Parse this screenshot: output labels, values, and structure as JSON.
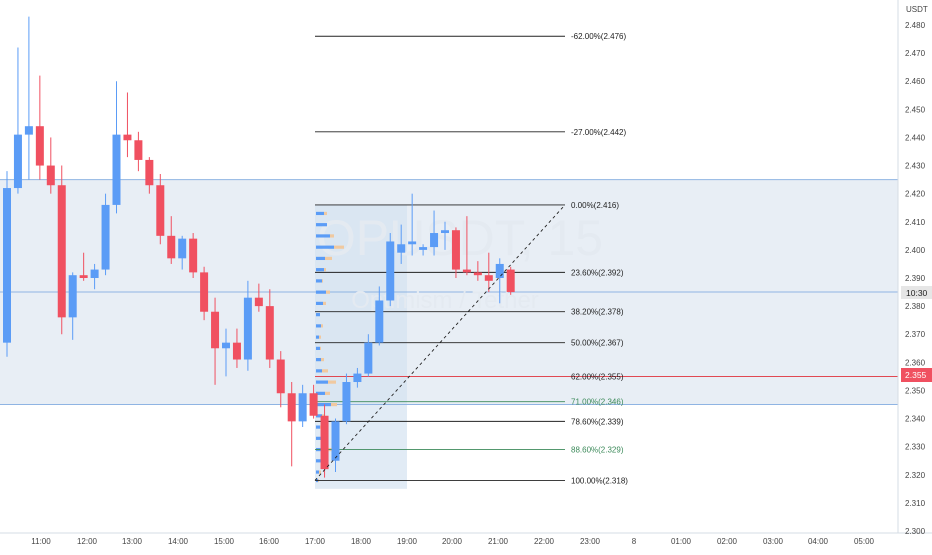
{
  "watermark": {
    "symbol": "OPUSDT, 15",
    "name": "Optimism / Tether"
  },
  "colors": {
    "up": "#5b9cf6",
    "down": "#f05060",
    "fib_line": "#222222",
    "fib_green": "#3c8a5a",
    "fib_red": "#e0303a",
    "hline": "#8fb4e3",
    "box_fill": "#e8eef5",
    "vp_up": "#5b9cf6",
    "vp_down": "#f0c9a0",
    "price_label_bg": "#f05060",
    "time_label_bg": "#e6e6e6"
  },
  "price_axis": {
    "unit": "USDT",
    "ticks": [
      "2.480",
      "2.470",
      "2.460",
      "2.450",
      "2.440",
      "2.430",
      "2.420",
      "2.410",
      "2.400",
      "2.390",
      "2.380",
      "2.370",
      "2.360",
      "2.350",
      "2.340",
      "2.330",
      "2.320",
      "2.310",
      "2.300"
    ],
    "current_price": "2.355",
    "crosshair_label": "10:30"
  },
  "time_axis": {
    "ticks": [
      "11:00",
      "12:00",
      "13:00",
      "14:00",
      "15:00",
      "16:00",
      "17:00",
      "18:00",
      "19:00",
      "20:00",
      "21:00",
      "22:00",
      "23:00",
      "8",
      "01:00",
      "02:00",
      "03:00",
      "04:00",
      "05:00"
    ]
  },
  "fib_levels": [
    {
      "label": "-62.00%(2.476)",
      "price": 2.476,
      "style": "black"
    },
    {
      "label": "-27.00%(2.442)",
      "price": 2.442,
      "style": "black"
    },
    {
      "label": "0.00%(2.416)",
      "price": 2.416,
      "style": "black"
    },
    {
      "label": "23.60%(2.392)",
      "price": 2.392,
      "style": "black"
    },
    {
      "label": "38.20%(2.378)",
      "price": 2.378,
      "style": "black"
    },
    {
      "label": "50.00%(2.367)",
      "price": 2.367,
      "style": "black"
    },
    {
      "label": "62.00%(2.355)",
      "price": 2.355,
      "style": "red"
    },
    {
      "label": "71.00%(2.346)",
      "price": 2.346,
      "style": "green"
    },
    {
      "label": "78.60%(2.339)",
      "price": 2.339,
      "style": "black"
    },
    {
      "label": "88.60%(2.329)",
      "price": 2.329,
      "style": "green"
    },
    {
      "label": "100.00%(2.318)",
      "price": 2.318,
      "style": "black"
    }
  ],
  "horizontal_lines": [
    2.425,
    2.385,
    2.345
  ],
  "chart_data": {
    "type": "candlestick",
    "x_unit": "time (15-minute candles)",
    "ylim": [
      2.298,
      2.484
    ],
    "y_unit": "USDT",
    "candles": [
      {
        "o": 2.367,
        "h": 2.428,
        "l": 2.362,
        "c": 2.422
      },
      {
        "o": 2.422,
        "h": 2.472,
        "l": 2.42,
        "c": 2.441
      },
      {
        "o": 2.441,
        "h": 2.483,
        "l": 2.425,
        "c": 2.444
      },
      {
        "o": 2.444,
        "h": 2.462,
        "l": 2.425,
        "c": 2.43
      },
      {
        "o": 2.43,
        "h": 2.44,
        "l": 2.42,
        "c": 2.423
      },
      {
        "o": 2.423,
        "h": 2.43,
        "l": 2.37,
        "c": 2.376
      },
      {
        "o": 2.376,
        "h": 2.392,
        "l": 2.368,
        "c": 2.391
      },
      {
        "o": 2.391,
        "h": 2.399,
        "l": 2.389,
        "c": 2.39
      },
      {
        "o": 2.39,
        "h": 2.395,
        "l": 2.386,
        "c": 2.393
      },
      {
        "o": 2.393,
        "h": 2.42,
        "l": 2.391,
        "c": 2.416
      },
      {
        "o": 2.416,
        "h": 2.46,
        "l": 2.413,
        "c": 2.441
      },
      {
        "o": 2.441,
        "h": 2.456,
        "l": 2.433,
        "c": 2.439
      },
      {
        "o": 2.439,
        "h": 2.442,
        "l": 2.428,
        "c": 2.432
      },
      {
        "o": 2.432,
        "h": 2.433,
        "l": 2.42,
        "c": 2.423
      },
      {
        "o": 2.423,
        "h": 2.427,
        "l": 2.402,
        "c": 2.405
      },
      {
        "o": 2.405,
        "h": 2.412,
        "l": 2.395,
        "c": 2.397
      },
      {
        "o": 2.397,
        "h": 2.405,
        "l": 2.393,
        "c": 2.404
      },
      {
        "o": 2.404,
        "h": 2.406,
        "l": 2.39,
        "c": 2.392
      },
      {
        "o": 2.392,
        "h": 2.394,
        "l": 2.375,
        "c": 2.378
      },
      {
        "o": 2.378,
        "h": 2.383,
        "l": 2.352,
        "c": 2.365
      },
      {
        "o": 2.365,
        "h": 2.372,
        "l": 2.355,
        "c": 2.367
      },
      {
        "o": 2.367,
        "h": 2.372,
        "l": 2.358,
        "c": 2.361
      },
      {
        "o": 2.361,
        "h": 2.389,
        "l": 2.357,
        "c": 2.383
      },
      {
        "o": 2.383,
        "h": 2.388,
        "l": 2.378,
        "c": 2.38
      },
      {
        "o": 2.38,
        "h": 2.386,
        "l": 2.358,
        "c": 2.361
      },
      {
        "o": 2.361,
        "h": 2.364,
        "l": 2.344,
        "c": 2.349
      },
      {
        "o": 2.349,
        "h": 2.353,
        "l": 2.323,
        "c": 2.339
      },
      {
        "o": 2.339,
        "h": 2.352,
        "l": 2.337,
        "c": 2.349
      },
      {
        "o": 2.349,
        "h": 2.352,
        "l": 2.34,
        "c": 2.341
      },
      {
        "o": 2.341,
        "h": 2.345,
        "l": 2.319,
        "c": 2.322
      },
      {
        "o": 2.325,
        "h": 2.34,
        "l": 2.321,
        "c": 2.339
      },
      {
        "o": 2.339,
        "h": 2.356,
        "l": 2.338,
        "c": 2.353
      },
      {
        "o": 2.353,
        "h": 2.358,
        "l": 2.351,
        "c": 2.356
      },
      {
        "o": 2.356,
        "h": 2.37,
        "l": 2.355,
        "c": 2.367
      },
      {
        "o": 2.367,
        "h": 2.387,
        "l": 2.366,
        "c": 2.382
      },
      {
        "o": 2.382,
        "h": 2.406,
        "l": 2.38,
        "c": 2.403
      },
      {
        "o": 2.399,
        "h": 2.409,
        "l": 2.395,
        "c": 2.402
      },
      {
        "o": 2.402,
        "h": 2.42,
        "l": 2.398,
        "c": 2.403
      },
      {
        "o": 2.4,
        "h": 2.402,
        "l": 2.398,
        "c": 2.401
      },
      {
        "o": 2.401,
        "h": 2.414,
        "l": 2.398,
        "c": 2.406
      },
      {
        "o": 2.406,
        "h": 2.41,
        "l": 2.4,
        "c": 2.407
      },
      {
        "o": 2.407,
        "h": 2.408,
        "l": 2.39,
        "c": 2.393
      },
      {
        "o": 2.393,
        "h": 2.412,
        "l": 2.391,
        "c": 2.392
      },
      {
        "o": 2.392,
        "h": 2.396,
        "l": 2.389,
        "c": 2.391
      },
      {
        "o": 2.391,
        "h": 2.399,
        "l": 2.385,
        "c": 2.389
      },
      {
        "o": 2.39,
        "h": 2.397,
        "l": 2.381,
        "c": 2.395
      },
      {
        "o": 2.393,
        "h": 2.394,
        "l": 2.384,
        "c": 2.385
      }
    ]
  }
}
